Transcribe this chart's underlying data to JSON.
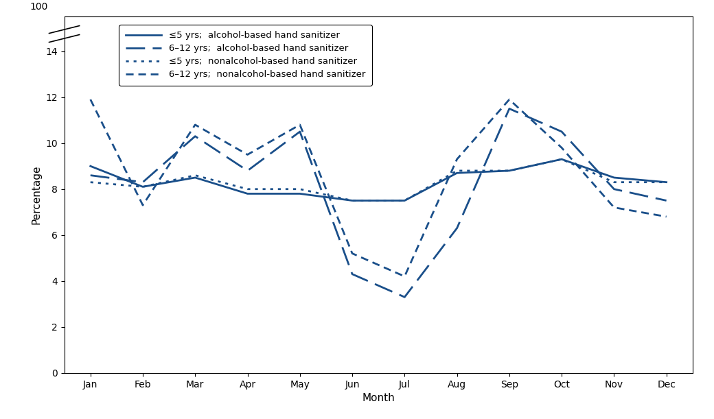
{
  "months": [
    "Jan",
    "Feb",
    "Mar",
    "Apr",
    "May",
    "Jun",
    "Jul",
    "Aug",
    "Sep",
    "Oct",
    "Nov",
    "Dec"
  ],
  "le5_alcohol": [
    9.0,
    8.1,
    8.5,
    7.8,
    7.8,
    7.5,
    7.5,
    8.7,
    8.8,
    9.3,
    8.5,
    8.3
  ],
  "s612_alcohol": [
    8.6,
    8.3,
    10.3,
    8.8,
    10.5,
    4.3,
    3.3,
    6.3,
    11.5,
    10.5,
    8.0,
    7.5
  ],
  "le5_nonalcohol": [
    8.3,
    8.1,
    8.6,
    8.0,
    8.0,
    7.5,
    7.5,
    8.8,
    8.8,
    9.3,
    8.3,
    8.3
  ],
  "s612_nonalcohol": [
    11.9,
    7.3,
    10.8,
    9.5,
    10.8,
    5.2,
    4.2,
    9.3,
    11.9,
    9.8,
    7.2,
    6.8
  ],
  "line_color": "#1a4f8a",
  "xlabel": "Month",
  "ylabel": "Percentage",
  "legend_labels": [
    "≤5 yrs;  alcohol-based hand sanitizer",
    "6–12 yrs;  alcohol-based hand sanitizer",
    "≤5 yrs;  nonalcohol-based hand sanitizer",
    "6–12 yrs;  nonalcohol-based hand sanitizer"
  ],
  "ytick_values": [
    0,
    2,
    4,
    6,
    8,
    10,
    12,
    14
  ],
  "ymax": 15.5,
  "ymin": 0
}
